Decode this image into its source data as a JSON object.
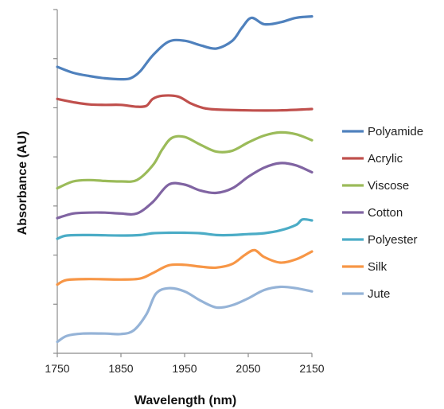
{
  "chart_data": {
    "type": "line",
    "title": "",
    "xlabel": "Wavelength (nm)",
    "ylabel": "Absorbance (AU)",
    "xlim": [
      1750,
      2150
    ],
    "x_ticks": [
      1750,
      1850,
      1950,
      2050,
      2150
    ],
    "y_tick_count": 7,
    "y_tick_labels_shown": false,
    "grid": false,
    "legend_position": "right",
    "series": [
      {
        "name": "Polyamide",
        "color": "#4F81BD",
        "x": [
          1750,
          1775,
          1800,
          1825,
          1850,
          1865,
          1880,
          1900,
          1925,
          1950,
          1975,
          2000,
          2025,
          2040,
          2055,
          2075,
          2100,
          2125,
          2150
        ],
        "y": [
          6.25,
          6.12,
          6.05,
          6.0,
          5.98,
          6.0,
          6.15,
          6.5,
          6.8,
          6.82,
          6.72,
          6.65,
          6.82,
          7.1,
          7.32,
          7.18,
          7.22,
          7.32,
          7.35
        ]
      },
      {
        "name": "Acrylic",
        "color": "#C0504D",
        "x": [
          1750,
          1775,
          1800,
          1825,
          1850,
          1875,
          1890,
          1900,
          1915,
          1940,
          1960,
          1980,
          2000,
          2050,
          2100,
          2150
        ],
        "y": [
          5.55,
          5.48,
          5.43,
          5.42,
          5.42,
          5.38,
          5.4,
          5.55,
          5.62,
          5.6,
          5.45,
          5.35,
          5.32,
          5.3,
          5.3,
          5.33
        ]
      },
      {
        "name": "Viscose",
        "color": "#9BBB59",
        "x": [
          1750,
          1775,
          1800,
          1825,
          1850,
          1875,
          1900,
          1915,
          1930,
          1950,
          1975,
          2000,
          2025,
          2050,
          2075,
          2100,
          2125,
          2150
        ],
        "y": [
          3.6,
          3.75,
          3.78,
          3.76,
          3.75,
          3.78,
          4.1,
          4.45,
          4.7,
          4.72,
          4.55,
          4.4,
          4.42,
          4.6,
          4.75,
          4.82,
          4.78,
          4.65
        ]
      },
      {
        "name": "Cotton",
        "color": "#8064A2",
        "x": [
          1750,
          1775,
          1800,
          1825,
          1850,
          1875,
          1900,
          1925,
          1950,
          1975,
          2000,
          2025,
          2050,
          2075,
          2100,
          2125,
          2150
        ],
        "y": [
          2.95,
          3.05,
          3.07,
          3.07,
          3.05,
          3.05,
          3.3,
          3.68,
          3.68,
          3.55,
          3.5,
          3.6,
          3.85,
          4.05,
          4.15,
          4.1,
          3.95
        ]
      },
      {
        "name": "Polyester",
        "color": "#4BACC6",
        "x": [
          1750,
          1765,
          1800,
          1850,
          1880,
          1900,
          1925,
          1950,
          1975,
          2000,
          2025,
          2050,
          2075,
          2100,
          2125,
          2135,
          2150
        ],
        "y": [
          2.5,
          2.57,
          2.58,
          2.57,
          2.58,
          2.62,
          2.63,
          2.63,
          2.62,
          2.58,
          2.58,
          2.6,
          2.62,
          2.68,
          2.8,
          2.92,
          2.9
        ]
      },
      {
        "name": "Silk",
        "color": "#F79646",
        "x": [
          1750,
          1765,
          1800,
          1850,
          1880,
          1900,
          1925,
          1950,
          1975,
          2000,
          2025,
          2045,
          2060,
          2075,
          2100,
          2125,
          2150
        ],
        "y": [
          1.5,
          1.6,
          1.62,
          1.61,
          1.63,
          1.75,
          1.92,
          1.93,
          1.89,
          1.87,
          1.95,
          2.15,
          2.25,
          2.1,
          1.98,
          2.05,
          2.22
        ]
      },
      {
        "name": "Jute",
        "color": "#95B3D7",
        "x": [
          1750,
          1765,
          1790,
          1825,
          1850,
          1870,
          1890,
          1905,
          1925,
          1950,
          1975,
          2000,
          2025,
          2050,
          2075,
          2100,
          2125,
          2150
        ],
        "y": [
          0.25,
          0.38,
          0.43,
          0.43,
          0.42,
          0.5,
          0.85,
          1.3,
          1.42,
          1.35,
          1.15,
          1.0,
          1.05,
          1.2,
          1.38,
          1.45,
          1.42,
          1.35
        ]
      }
    ]
  }
}
